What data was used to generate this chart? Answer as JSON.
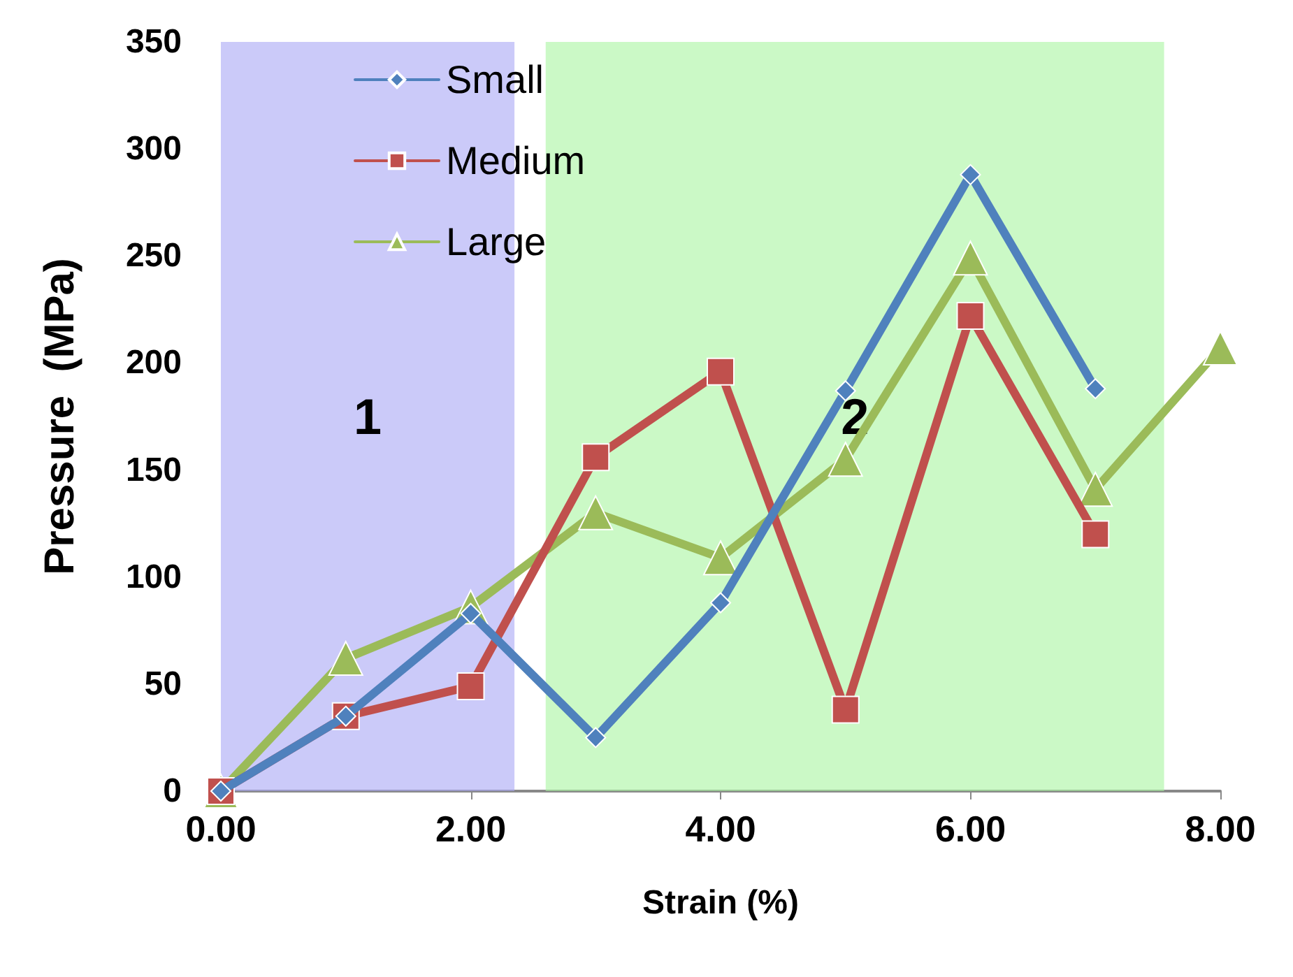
{
  "chart_data": {
    "type": "line",
    "xlabel": "Strain (%)",
    "ylabel": "Pressure  (MPa)",
    "xlim": [
      0,
      8
    ],
    "xticks": [
      {
        "value": 0,
        "label": "0.00"
      },
      {
        "value": 2,
        "label": "2.00"
      },
      {
        "value": 4,
        "label": "4.00"
      },
      {
        "value": 6,
        "label": "6.00"
      },
      {
        "value": 8,
        "label": "8.00"
      }
    ],
    "ylim": [
      0,
      350
    ],
    "yticks": [
      0,
      50,
      100,
      150,
      200,
      250,
      300,
      350
    ],
    "grid": false,
    "legend": "top left",
    "series": [
      {
        "name": "Small",
        "color": "#4f81bd",
        "marker": "diamond",
        "x": [
          0,
          1,
          2,
          3,
          4,
          5,
          6,
          7
        ],
        "values": [
          0,
          35,
          83,
          25,
          88,
          187,
          288,
          188
        ]
      },
      {
        "name": "Medium",
        "color": "#c0504d",
        "marker": "square",
        "x": [
          0,
          1,
          2,
          3,
          4,
          5,
          6,
          7
        ],
        "values": [
          0,
          35,
          49,
          156,
          196,
          38,
          222,
          120
        ]
      },
      {
        "name": "Large",
        "color": "#9bbb59",
        "marker": "triangle",
        "x": [
          0,
          1,
          2,
          3,
          4,
          5,
          6,
          7,
          8
        ],
        "values": [
          0,
          62,
          86,
          130,
          109,
          155,
          249,
          141,
          207
        ]
      }
    ],
    "bands": [
      {
        "axis": "x",
        "from": 0,
        "to": 2.35,
        "label": "1",
        "color": "#a9a6f5"
      },
      {
        "axis": "x",
        "from": 2.6,
        "to": 7.55,
        "label": "2",
        "color": "#a8f5a0"
      }
    ]
  }
}
